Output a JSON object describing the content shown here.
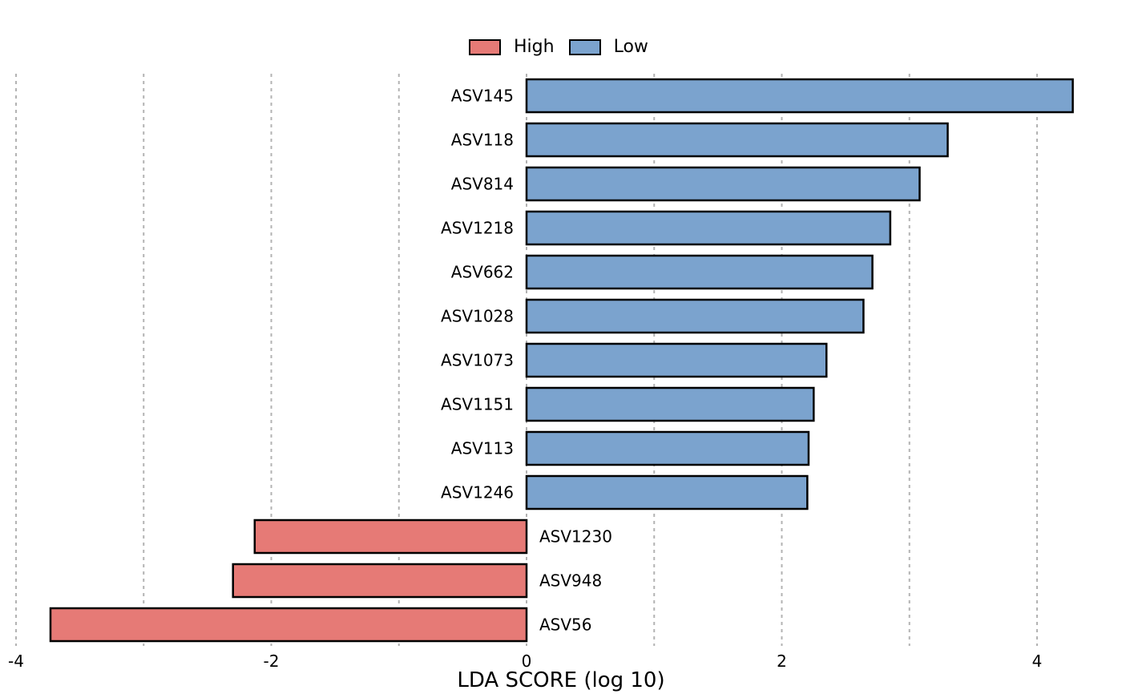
{
  "legend": {
    "items": [
      {
        "label": "High",
        "color": "#E67A76"
      },
      {
        "label": "Low",
        "color": "#7BA3CE"
      }
    ]
  },
  "chart_data": {
    "type": "bar",
    "orientation": "horizontal",
    "xlabel": "LDA SCORE (log 10)",
    "ylabel": "",
    "title": "",
    "xlim": [
      -4,
      4.3
    ],
    "x_ticks": [
      "-4",
      "-2",
      "0",
      "2",
      "4"
    ],
    "grid": "vertical dashed",
    "legend_position": "top",
    "colors": {
      "High": "#E67A76",
      "Low": "#7BA3CE"
    },
    "categories": [
      "ASV145",
      "ASV118",
      "ASV814",
      "ASV1218",
      "ASV662",
      "ASV1028",
      "ASV1073",
      "ASV1151",
      "ASV113",
      "ASV1246",
      "ASV1230",
      "ASV948",
      "ASV56"
    ],
    "values": [
      4.28,
      3.3,
      3.08,
      2.85,
      2.71,
      2.64,
      2.35,
      2.25,
      2.21,
      2.2,
      -2.13,
      -2.3,
      -3.73
    ],
    "groups": [
      "Low",
      "Low",
      "Low",
      "Low",
      "Low",
      "Low",
      "Low",
      "Low",
      "Low",
      "Low",
      "High",
      "High",
      "High"
    ]
  }
}
